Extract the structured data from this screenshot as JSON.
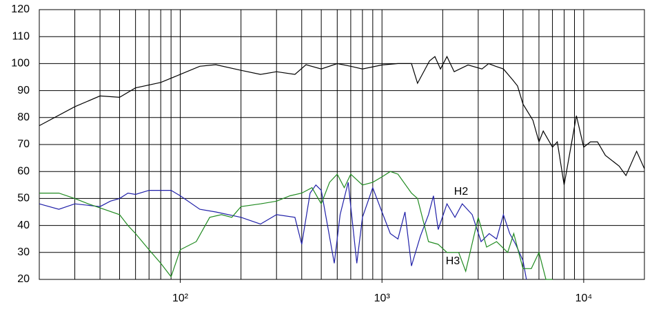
{
  "chart_data": {
    "type": "line",
    "log_x": true,
    "grid": true,
    "xlim": [
      20,
      20000
    ],
    "ylim": [
      20,
      120
    ],
    "xticks": [
      {
        "value": 100,
        "label": "10²"
      },
      {
        "value": 1000,
        "label": "10³"
      },
      {
        "value": 10000,
        "label": "10⁴"
      }
    ],
    "xgrid": [
      20,
      30,
      40,
      50,
      60,
      70,
      80,
      90,
      100,
      200,
      300,
      400,
      500,
      600,
      700,
      800,
      900,
      1000,
      2000,
      3000,
      4000,
      5000,
      6000,
      7000,
      8000,
      9000,
      10000,
      20000
    ],
    "yticks": [
      20,
      30,
      40,
      50,
      60,
      70,
      80,
      90,
      100,
      110,
      120
    ],
    "series": [
      {
        "color": "#000000",
        "x": [
          20,
          30,
          40,
          50,
          60,
          80,
          100,
          125,
          150,
          200,
          250,
          300,
          370,
          420,
          500,
          600,
          700,
          800,
          1000,
          1200,
          1400,
          1500,
          1720,
          1830,
          1950,
          2100,
          2280,
          2670,
          3130,
          3380,
          3660,
          4000,
          4440,
          4700,
          5000,
          5600,
          6000,
          6300,
          7000,
          7400,
          8000,
          9200,
          10000,
          10800,
          11700,
          12800,
          15000,
          16200,
          18300,
          20000
        ],
        "values": [
          77,
          84,
          88,
          87.5,
          91,
          93,
          96,
          99,
          99.6,
          97.5,
          96,
          97,
          96,
          99.6,
          98,
          100,
          99,
          98,
          99.5,
          100,
          100,
          92.7,
          101,
          102.6,
          98,
          102.6,
          97,
          99.5,
          98,
          100,
          99,
          98,
          94,
          91.7,
          85,
          79,
          71,
          75,
          69,
          71,
          55,
          80.7,
          69,
          71,
          71,
          66,
          62,
          58.5,
          67.5,
          61
        ]
      },
      {
        "color": "#1f1fa8",
        "x": [
          20,
          25,
          30,
          40,
          45,
          50,
          55,
          60,
          70,
          80,
          90,
          100,
          125,
          150,
          200,
          250,
          300,
          370,
          400,
          440,
          470,
          500,
          580,
          620,
          680,
          750,
          800,
          900,
          1000,
          1100,
          1200,
          1300,
          1400,
          1550,
          1700,
          1800,
          1900,
          2100,
          2300,
          2500,
          2800,
          3100,
          3400,
          3700,
          4000,
          4300,
          4600,
          5000,
          5200
        ],
        "values": [
          48,
          46,
          48,
          47,
          49,
          50,
          52,
          51.5,
          53,
          53,
          53,
          51,
          46,
          45,
          43,
          40.5,
          44,
          43,
          33,
          52,
          55,
          53,
          26,
          44,
          56,
          26,
          43,
          54,
          45,
          37,
          35,
          45,
          25,
          36,
          44,
          51,
          38.5,
          48,
          43,
          48,
          44,
          34,
          37,
          35,
          44,
          37,
          33,
          27,
          20
        ]
      },
      {
        "color": "#1f8a1f",
        "x": [
          20,
          25,
          30,
          35,
          40,
          50,
          55,
          60,
          70,
          80,
          90,
          100,
          120,
          140,
          160,
          180,
          200,
          250,
          300,
          350,
          400,
          450,
          500,
          550,
          600,
          650,
          700,
          800,
          900,
          1000,
          1100,
          1200,
          1400,
          1500,
          1700,
          1900,
          2100,
          2400,
          2600,
          3000,
          3300,
          3700,
          4200,
          4500,
          5000,
          5500,
          6000,
          6500,
          7000
        ],
        "values": [
          52,
          52,
          50,
          48,
          46.5,
          44,
          40,
          37,
          31,
          26,
          21,
          31,
          34,
          43,
          44,
          43,
          47,
          48,
          49,
          51,
          52,
          54,
          48,
          56,
          59,
          54,
          59,
          55,
          56,
          58,
          60,
          59,
          52,
          50,
          34,
          33,
          30,
          30,
          23,
          43,
          32,
          34,
          30,
          37,
          24,
          24,
          30,
          20,
          20
        ]
      }
    ],
    "annotations": [
      "H2",
      "H3"
    ]
  }
}
